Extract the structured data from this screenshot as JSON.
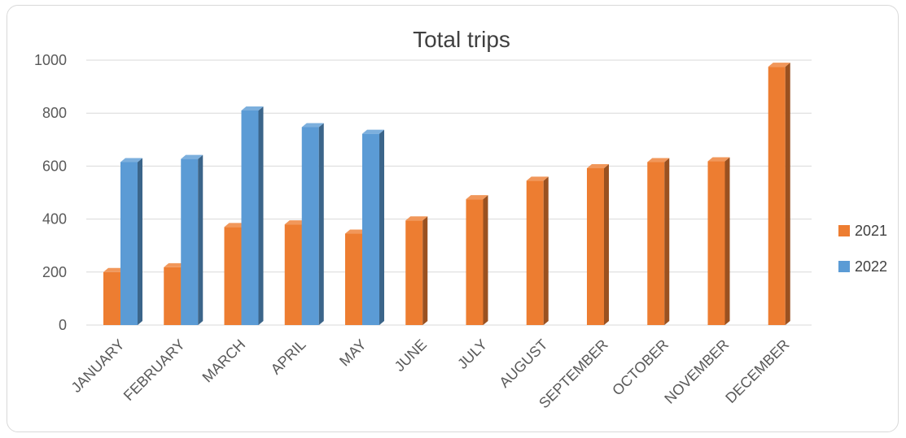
{
  "chart_data": {
    "type": "bar",
    "title": "Total trips",
    "categories": [
      "JANUARY",
      "FEBRUARY",
      "MARCH",
      "APRIL",
      "MAY",
      "JUNE",
      "JULY",
      "AUGUST",
      "SEPTEMBER",
      "OCTOBER",
      "NOVEMBER",
      "DECEMBER"
    ],
    "series": [
      {
        "name": "2021",
        "color": "#ED7D31",
        "values": [
          200,
          218,
          370,
          380,
          345,
          395,
          475,
          545,
          592,
          615,
          618,
          975
        ]
      },
      {
        "name": "2022",
        "color": "#5B9BD5",
        "values": [
          615,
          627,
          810,
          747,
          722,
          null,
          null,
          null,
          null,
          null,
          null,
          null
        ]
      }
    ],
    "ylim": [
      0,
      1000
    ],
    "yticks": [
      0,
      200,
      400,
      600,
      800,
      1000
    ],
    "grid": true,
    "legend": "right"
  }
}
